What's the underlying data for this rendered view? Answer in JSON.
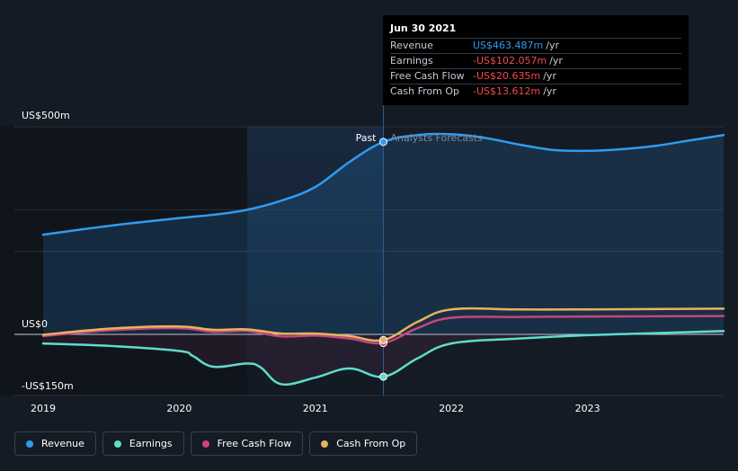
{
  "tooltip": {
    "date": "Jun 30 2021",
    "rows": [
      {
        "label": "Revenue",
        "value": "US$463.487m",
        "unit": "/yr",
        "color": "#2f9cf0"
      },
      {
        "label": "Earnings",
        "value": "-US$102.057m",
        "unit": "/yr",
        "color": "#f24c4c"
      },
      {
        "label": "Free Cash Flow",
        "value": "-US$20.635m",
        "unit": "/yr",
        "color": "#f24c4c"
      },
      {
        "label": "Cash From Op",
        "value": "-US$13.612m",
        "unit": "/yr",
        "color": "#f24c4c"
      }
    ]
  },
  "markers": {
    "past": "Past",
    "forecast": "Analysts Forecasts"
  },
  "legend": [
    {
      "label": "Revenue",
      "color": "#2f9cf0"
    },
    {
      "label": "Earnings",
      "color": "#5fdccb"
    },
    {
      "label": "Free Cash Flow",
      "color": "#c6457e"
    },
    {
      "label": "Cash From Op",
      "color": "#e8b35f"
    }
  ],
  "chart_data": {
    "type": "line",
    "y_labels": [
      "US$500m",
      "US$0",
      "-US$150m"
    ],
    "ylim": [
      -150,
      500
    ],
    "xlim": [
      2019,
      2024
    ],
    "x_ticks": [
      2019,
      2020,
      2021,
      2022,
      2023
    ],
    "x_tick_labels": [
      "2019",
      "2020",
      "2021",
      "2022",
      "2023"
    ],
    "past_end": 2021.5,
    "highlight_start": 2020.5,
    "series": [
      {
        "name": "Revenue",
        "color": "#2f9cf0",
        "fill": true,
        "points": [
          [
            2019,
            240
          ],
          [
            2019.5,
            262
          ],
          [
            2020,
            280
          ],
          [
            2020.25,
            288
          ],
          [
            2020.5,
            300
          ],
          [
            2020.75,
            322
          ],
          [
            2021,
            355
          ],
          [
            2021.25,
            415
          ],
          [
            2021.5,
            463.5
          ],
          [
            2021.75,
            480
          ],
          [
            2022,
            482
          ],
          [
            2022.25,
            473
          ],
          [
            2022.5,
            457
          ],
          [
            2022.75,
            444
          ],
          [
            2023,
            442
          ],
          [
            2023.25,
            446
          ],
          [
            2023.5,
            454
          ],
          [
            2023.75,
            467
          ],
          [
            2024,
            480
          ]
        ]
      },
      {
        "name": "Earnings",
        "color": "#5fdccb",
        "fill": false,
        "points": [
          [
            2019,
            -22
          ],
          [
            2019.5,
            -28
          ],
          [
            2020,
            -40
          ],
          [
            2020.1,
            -52
          ],
          [
            2020.25,
            -78
          ],
          [
            2020.5,
            -70
          ],
          [
            2020.6,
            -80
          ],
          [
            2020.75,
            -120
          ],
          [
            2021,
            -104
          ],
          [
            2021.25,
            -82
          ],
          [
            2021.5,
            -102
          ],
          [
            2021.75,
            -58
          ],
          [
            2022,
            -22
          ],
          [
            2022.5,
            -10
          ],
          [
            2023,
            -2
          ],
          [
            2023.5,
            3
          ],
          [
            2024,
            8
          ]
        ]
      },
      {
        "name": "Free Cash Flow",
        "color": "#c6457e",
        "fill": false,
        "points": [
          [
            2019,
            -4
          ],
          [
            2019.5,
            10
          ],
          [
            2020,
            15
          ],
          [
            2020.25,
            6
          ],
          [
            2020.5,
            8
          ],
          [
            2020.75,
            -5
          ],
          [
            2021,
            -3
          ],
          [
            2021.25,
            -10
          ],
          [
            2021.5,
            -20.6
          ],
          [
            2021.75,
            15
          ],
          [
            2022,
            40
          ],
          [
            2022.5,
            42
          ],
          [
            2023,
            43
          ],
          [
            2024,
            44
          ]
        ]
      },
      {
        "name": "Cash From Op",
        "color": "#e8b35f",
        "fill": false,
        "points": [
          [
            2019,
            -1
          ],
          [
            2019.5,
            14
          ],
          [
            2020,
            19
          ],
          [
            2020.25,
            11
          ],
          [
            2020.5,
            12
          ],
          [
            2020.75,
            2
          ],
          [
            2021,
            2
          ],
          [
            2021.25,
            -4
          ],
          [
            2021.5,
            -13.6
          ],
          [
            2021.75,
            30
          ],
          [
            2022,
            60
          ],
          [
            2022.5,
            60
          ],
          [
            2023,
            60
          ],
          [
            2024,
            62
          ]
        ]
      }
    ]
  }
}
